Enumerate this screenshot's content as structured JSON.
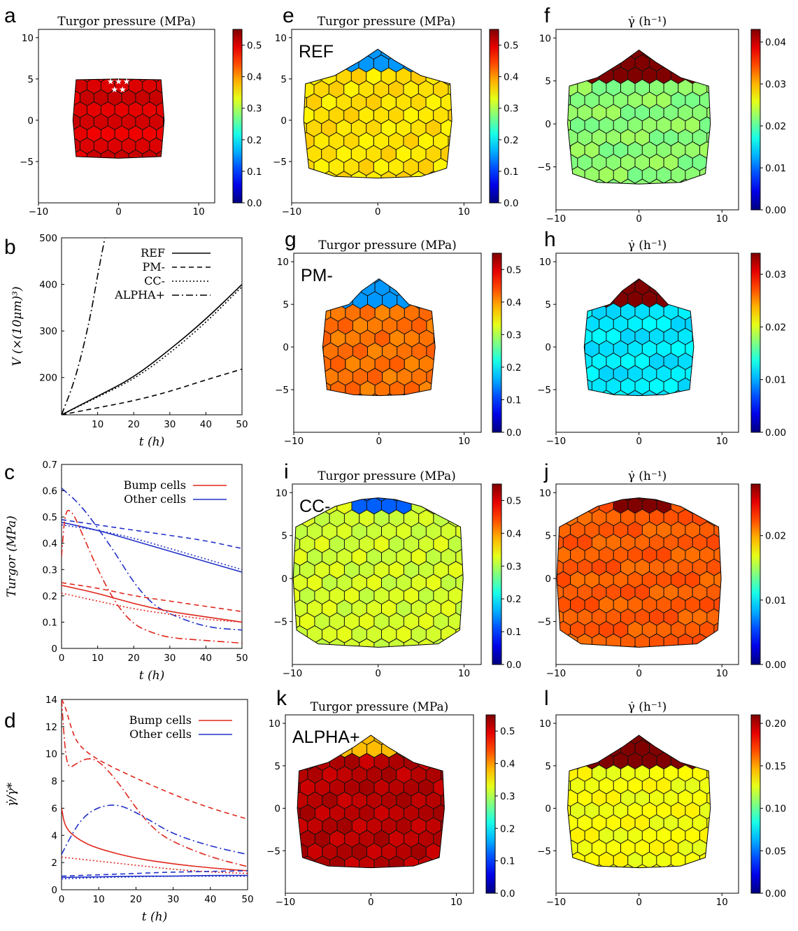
{
  "chart_data": [
    {
      "panel": "a",
      "type": "heatmap",
      "title": "Turgor pressure (MPa)",
      "xlim": [
        -10,
        10
      ],
      "ylim": [
        -10,
        10
      ],
      "xticks": [
        "−10",
        "0",
        "10"
      ],
      "yticks": [
        "10",
        "5",
        "0",
        "−5"
      ],
      "tissue_extent": {
        "x": [
          -5.5,
          5.5
        ],
        "y": [
          -4.5,
          5
        ]
      },
      "marked_cells": 5,
      "colorbar": {
        "range": [
          0,
          0.55
        ],
        "ticks": [
          "0.5",
          "0.4",
          "0.3",
          "0.2",
          "0.1",
          "0.0"
        ]
      },
      "dominant_value": 0.5
    },
    {
      "panel": "b",
      "type": "line",
      "xlabel": "t (h)",
      "ylabel": "V (×(10μm)³)",
      "xlim": [
        0,
        50
      ],
      "ylim": [
        120,
        500
      ],
      "xticks": [
        "10",
        "20",
        "30",
        "40",
        "50"
      ],
      "yticks": [
        "500",
        "400",
        "300",
        "200"
      ],
      "legend_position": "top-right",
      "series": [
        {
          "name": "REF",
          "style": "solid",
          "x": [
            0,
            10,
            20,
            30,
            40,
            50
          ],
          "y": [
            120,
            160,
            200,
            260,
            325,
            400
          ]
        },
        {
          "name": "PM-",
          "style": "dashed",
          "x": [
            0,
            10,
            20,
            30,
            40,
            50
          ],
          "y": [
            120,
            135,
            150,
            170,
            195,
            218
          ]
        },
        {
          "name": "CC-",
          "style": "dotted",
          "x": [
            0,
            10,
            20,
            30,
            40,
            50
          ],
          "y": [
            120,
            158,
            196,
            252,
            318,
            395
          ]
        },
        {
          "name": "ALPHA+",
          "style": "dashdot",
          "x": [
            0,
            4,
            8,
            10,
            12
          ],
          "y": [
            120,
            200,
            330,
            420,
            500
          ]
        }
      ]
    },
    {
      "panel": "c",
      "type": "line",
      "xlabel": "t (h)",
      "ylabel": "Turgor (MPa)",
      "xlim": [
        0,
        50
      ],
      "ylim": [
        0,
        0.7
      ],
      "xticks": [
        "0",
        "10",
        "20",
        "30",
        "40",
        "50"
      ],
      "yticks": [
        "0.7",
        "0.6",
        "0.5",
        "0.4",
        "0.3",
        "0.2",
        "0.1",
        "0"
      ],
      "legend_position": "top-right",
      "legend": [
        {
          "name": "Bump cells",
          "color": "#e0271d"
        },
        {
          "name": "Other cells",
          "color": "#2231c8"
        }
      ],
      "series": [
        {
          "group": "Other cells",
          "style": "solid",
          "x": [
            0,
            10,
            20,
            30,
            40,
            50
          ],
          "y": [
            0.48,
            0.45,
            0.41,
            0.37,
            0.33,
            0.29
          ]
        },
        {
          "group": "Other cells",
          "style": "dashed",
          "x": [
            0,
            10,
            20,
            30,
            40,
            50
          ],
          "y": [
            0.49,
            0.47,
            0.45,
            0.43,
            0.41,
            0.38
          ]
        },
        {
          "group": "Other cells",
          "style": "dotted",
          "x": [
            0,
            10,
            20,
            30,
            40,
            50
          ],
          "y": [
            0.47,
            0.45,
            0.42,
            0.38,
            0.34,
            0.3
          ]
        },
        {
          "group": "Other cells",
          "style": "dashdot",
          "x": [
            0,
            5,
            10,
            15,
            20,
            25,
            30,
            40,
            50
          ],
          "y": [
            0.61,
            0.55,
            0.46,
            0.36,
            0.25,
            0.17,
            0.13,
            0.08,
            0.07
          ]
        },
        {
          "group": "Bump cells",
          "style": "solid",
          "x": [
            0,
            10,
            20,
            30,
            40,
            50
          ],
          "y": [
            0.24,
            0.21,
            0.17,
            0.14,
            0.12,
            0.1
          ]
        },
        {
          "group": "Bump cells",
          "style": "dashed",
          "x": [
            0,
            10,
            20,
            30,
            40,
            50
          ],
          "y": [
            0.25,
            0.23,
            0.2,
            0.18,
            0.16,
            0.14
          ]
        },
        {
          "group": "Bump cells",
          "style": "dotted",
          "x": [
            0,
            10,
            20,
            30,
            40,
            50
          ],
          "y": [
            0.21,
            0.18,
            0.15,
            0.13,
            0.11,
            0.1
          ]
        },
        {
          "group": "Bump cells",
          "style": "dashdot",
          "x": [
            0,
            1,
            3,
            5,
            10,
            15,
            20,
            25,
            30,
            40,
            50
          ],
          "y": [
            0.35,
            0.53,
            0.52,
            0.46,
            0.3,
            0.17,
            0.09,
            0.06,
            0.04,
            0.03,
            0.02
          ]
        }
      ]
    },
    {
      "panel": "d",
      "type": "line",
      "xlabel": "t (h)",
      "ylabel": "γ̇/γ̇*",
      "xlim": [
        0,
        50
      ],
      "ylim": [
        0,
        14
      ],
      "xticks": [
        "0",
        "10",
        "20",
        "30",
        "40",
        "50"
      ],
      "yticks": [
        "14",
        "12",
        "10",
        "8",
        "6",
        "4",
        "2",
        "0"
      ],
      "legend_position": "top-right",
      "legend": [
        {
          "name": "Bump cells",
          "color": "#e0271d"
        },
        {
          "name": "Other cells",
          "color": "#2231c8"
        }
      ],
      "series": [
        {
          "group": "Bump cells",
          "style": "solid",
          "x": [
            0,
            1,
            5,
            10,
            20,
            30,
            40,
            50
          ],
          "y": [
            6,
            4.5,
            3.6,
            3.0,
            2.3,
            1.9,
            1.6,
            1.4
          ]
        },
        {
          "group": "Bump cells",
          "style": "dashed",
          "x": [
            0,
            1,
            3,
            5,
            10,
            20,
            30,
            40,
            50
          ],
          "y": [
            14,
            13.5,
            11.5,
            10.5,
            9.5,
            8.2,
            7.0,
            6.0,
            5.2
          ]
        },
        {
          "group": "Bump cells",
          "style": "dotted",
          "x": [
            0,
            10,
            20,
            30,
            40,
            50
          ],
          "y": [
            2.4,
            2.1,
            1.8,
            1.5,
            1.3,
            1.2
          ]
        },
        {
          "group": "Bump cells",
          "style": "dashdot",
          "x": [
            0,
            1,
            2,
            4,
            7,
            10,
            15,
            20,
            25,
            30,
            40,
            50
          ],
          "y": [
            14,
            10,
            8.9,
            9.3,
            9.7,
            9.5,
            8.0,
            6.0,
            4.4,
            3.5,
            2.4,
            1.7
          ]
        },
        {
          "group": "Other cells",
          "style": "solid",
          "x": [
            0,
            10,
            20,
            30,
            40,
            50
          ],
          "y": [
            0.9,
            0.95,
            1.0,
            1.0,
            1.05,
            1.05
          ]
        },
        {
          "group": "Other cells",
          "style": "dashed",
          "x": [
            0,
            10,
            20,
            30,
            40,
            50
          ],
          "y": [
            1.0,
            1.1,
            1.2,
            1.3,
            1.35,
            1.4
          ]
        },
        {
          "group": "Other cells",
          "style": "dotted",
          "x": [
            0,
            10,
            20,
            30,
            40,
            50
          ],
          "y": [
            0.8,
            0.9,
            0.95,
            1.0,
            1.0,
            1.0
          ]
        },
        {
          "group": "Other cells",
          "style": "dashdot",
          "x": [
            0,
            3,
            6,
            10,
            15,
            20,
            25,
            30,
            40,
            50
          ],
          "y": [
            2.6,
            4.2,
            5.4,
            6.1,
            6.3,
            5.7,
            4.9,
            4.1,
            3.2,
            2.6
          ]
        }
      ]
    },
    {
      "panel": "e",
      "type": "heatmap",
      "title": "Turgor pressure (MPa)",
      "tag": "REF",
      "xlim": [
        -10,
        10
      ],
      "ylim": [
        -10,
        10
      ],
      "xticks": [
        "−10",
        "0",
        "10"
      ],
      "yticks": [
        "10",
        "5",
        "0",
        "−5"
      ],
      "colorbar": {
        "range": [
          0,
          0.55
        ],
        "ticks": [
          "0.5",
          "0.4",
          "0.3",
          "0.2",
          "0.1",
          "0.0"
        ]
      },
      "dominant_value": 0.36,
      "bump_value": 0.15
    },
    {
      "panel": "f",
      "type": "heatmap",
      "title": "γ̇ (h⁻¹)",
      "xlim": [
        -10,
        10
      ],
      "ylim": [
        -10,
        10
      ],
      "xticks": [
        "−10",
        "0",
        "10"
      ],
      "yticks": [
        "10",
        "5",
        "0",
        "−5"
      ],
      "colorbar": {
        "range": [
          0,
          0.043
        ],
        "ticks": [
          "0.04",
          "0.03",
          "0.02",
          "0.01",
          "0.00"
        ]
      },
      "dominant_value": 0.022,
      "bump_value": 0.043
    },
    {
      "panel": "g",
      "type": "heatmap",
      "title": "Turgor pressure (MPa)",
      "tag": "PM-",
      "xlim": [
        -10,
        10
      ],
      "ylim": [
        -10,
        10
      ],
      "xticks": [
        "−10",
        "0",
        "10"
      ],
      "yticks": [
        "10",
        "5",
        "0",
        "−5"
      ],
      "colorbar": {
        "range": [
          0,
          0.55
        ],
        "ticks": [
          "0.5",
          "0.4",
          "0.3",
          "0.2",
          "0.1",
          "0.0"
        ]
      },
      "dominant_value": 0.42,
      "bump_value": 0.15
    },
    {
      "panel": "h",
      "type": "heatmap",
      "title": "γ̇ (h⁻¹)",
      "xlim": [
        -10,
        10
      ],
      "ylim": [
        -10,
        10
      ],
      "xticks": [
        "−10",
        "0",
        "10"
      ],
      "yticks": [
        "10",
        "5",
        "0",
        "−5"
      ],
      "colorbar": {
        "range": [
          0,
          0.034
        ],
        "ticks": [
          "0.03",
          "0.02",
          "0.01",
          "0.00"
        ]
      },
      "dominant_value": 0.012,
      "bump_value": 0.034
    },
    {
      "panel": "i",
      "type": "heatmap",
      "title": "Turgor pressure (MPa)",
      "tag": "CC-",
      "xlim": [
        -10,
        10
      ],
      "ylim": [
        -10,
        10
      ],
      "xticks": [
        "−10",
        "0",
        "10"
      ],
      "yticks": [
        "10",
        "5",
        "0",
        "−5"
      ],
      "colorbar": {
        "range": [
          0,
          0.55
        ],
        "ticks": [
          "0.5",
          "0.4",
          "0.3",
          "0.2",
          "0.1",
          "0.0"
        ]
      },
      "dominant_value": 0.32,
      "bump_value": 0.12
    },
    {
      "panel": "j",
      "type": "heatmap",
      "title": "γ̇ (h⁻¹)",
      "xlim": [
        -10,
        10
      ],
      "ylim": [
        -10,
        10
      ],
      "xticks": [
        "−10",
        "0",
        "10"
      ],
      "yticks": [
        "10",
        "5",
        "0",
        "−5"
      ],
      "colorbar": {
        "range": [
          0,
          0.028
        ],
        "ticks": [
          "0.02",
          "0.01",
          "0.00"
        ]
      },
      "dominant_value": 0.022,
      "bump_value": 0.028
    },
    {
      "panel": "k",
      "type": "heatmap",
      "title": "Turgor pressure (MPa)",
      "tag": "ALPHA+",
      "xlim": [
        -10,
        10
      ],
      "ylim": [
        -10,
        10
      ],
      "xticks": [
        "−10",
        "0",
        "10"
      ],
      "yticks": [
        "10",
        "5",
        "0",
        "−5"
      ],
      "colorbar": {
        "range": [
          0,
          0.55
        ],
        "ticks": [
          "0.5",
          "0.4",
          "0.3",
          "0.2",
          "0.1",
          "0.0"
        ]
      },
      "dominant_value": 0.52,
      "bump_value": 0.38
    },
    {
      "panel": "l",
      "type": "heatmap",
      "title": "γ̇ (h⁻¹)",
      "xlim": [
        -10,
        10
      ],
      "ylim": [
        -10,
        10
      ],
      "xticks": [
        "−10",
        "0",
        "10"
      ],
      "yticks": [
        "10",
        "5",
        "0",
        "−5"
      ],
      "colorbar": {
        "range": [
          0,
          0.21
        ],
        "ticks": [
          "0.20",
          "0.15",
          "0.10",
          "0.05",
          "0.00"
        ]
      },
      "dominant_value": 0.13,
      "bump_value": 0.21
    }
  ]
}
